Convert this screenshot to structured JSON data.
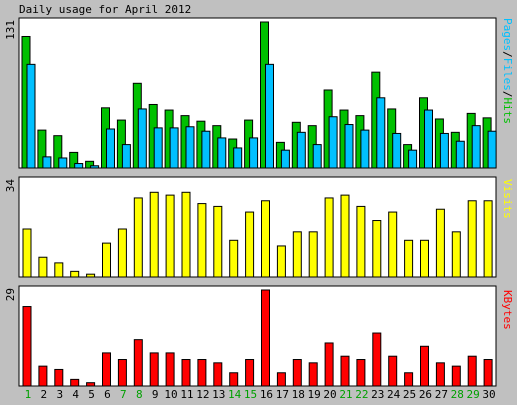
{
  "title": "Daily usage for April 2012",
  "colors": {
    "frame_bg": "#c0c0c0",
    "panel_bg": "#ffffff",
    "hits": "#00c000",
    "files": "#00c0ff",
    "visits": "#ffff00",
    "kbytes": "#ff0000",
    "weekday_label": "#000000",
    "weekend_label": "#00a000"
  },
  "legend": {
    "hits_files": [
      "Pages",
      "/",
      "Files",
      "/",
      "Hits"
    ],
    "visits": "Visits",
    "kbytes": "KBytes"
  },
  "chart_data": [
    {
      "type": "bar",
      "panel": "hits-files",
      "categories": [
        "1",
        "2",
        "3",
        "4",
        "5",
        "6",
        "7",
        "8",
        "9",
        "10",
        "11",
        "12",
        "13",
        "14",
        "15",
        "16",
        "17",
        "18",
        "19",
        "20",
        "21",
        "22",
        "23",
        "24",
        "25",
        "26",
        "27",
        "28",
        "29",
        "30"
      ],
      "weekend_days": [
        "1",
        "7",
        "8",
        "14",
        "15",
        "21",
        "22",
        "28",
        "29"
      ],
      "ymax_label": "131",
      "ylim": [
        0,
        131
      ],
      "series": [
        {
          "name": "Hits",
          "values": [
            118,
            34,
            29,
            14,
            6,
            54,
            43,
            76,
            57,
            52,
            47,
            42,
            38,
            26,
            43,
            131,
            23,
            41,
            38,
            70,
            52,
            47,
            86,
            53,
            21,
            63,
            44,
            32,
            49,
            45
          ]
        },
        {
          "name": "Files",
          "values": [
            93,
            10,
            9,
            4,
            2,
            35,
            21,
            53,
            36,
            36,
            37,
            33,
            27,
            18,
            27,
            93,
            16,
            32,
            21,
            46,
            39,
            34,
            63,
            31,
            16,
            52,
            31,
            24,
            38,
            33
          ]
        }
      ]
    },
    {
      "type": "bar",
      "panel": "visits",
      "categories": [
        "1",
        "2",
        "3",
        "4",
        "5",
        "6",
        "7",
        "8",
        "9",
        "10",
        "11",
        "12",
        "13",
        "14",
        "15",
        "16",
        "17",
        "18",
        "19",
        "20",
        "21",
        "22",
        "23",
        "24",
        "25",
        "26",
        "27",
        "28",
        "29",
        "30"
      ],
      "ymax_label": "34",
      "ylim": [
        0,
        34
      ],
      "series": [
        {
          "name": "Visits",
          "values": [
            17,
            7,
            5,
            2,
            1,
            12,
            17,
            28,
            30,
            29,
            30,
            26,
            25,
            13,
            23,
            27,
            11,
            16,
            16,
            28,
            29,
            25,
            20,
            23,
            13,
            13,
            24,
            16,
            27,
            27
          ]
        }
      ]
    },
    {
      "type": "bar",
      "panel": "kbytes",
      "categories": [
        "1",
        "2",
        "3",
        "4",
        "5",
        "6",
        "7",
        "8",
        "9",
        "10",
        "11",
        "12",
        "13",
        "14",
        "15",
        "16",
        "17",
        "18",
        "19",
        "20",
        "21",
        "22",
        "23",
        "24",
        "25",
        "26",
        "27",
        "28",
        "29",
        "30"
      ],
      "ymax_label": "29",
      "ylim": [
        0,
        29
      ],
      "series": [
        {
          "name": "KBytes",
          "values": [
            24,
            6,
            5,
            2,
            1,
            10,
            8,
            14,
            10,
            10,
            8,
            8,
            7,
            4,
            8,
            29,
            4,
            8,
            7,
            13,
            9,
            8,
            16,
            9,
            4,
            12,
            7,
            6,
            9,
            8
          ]
        }
      ]
    }
  ]
}
